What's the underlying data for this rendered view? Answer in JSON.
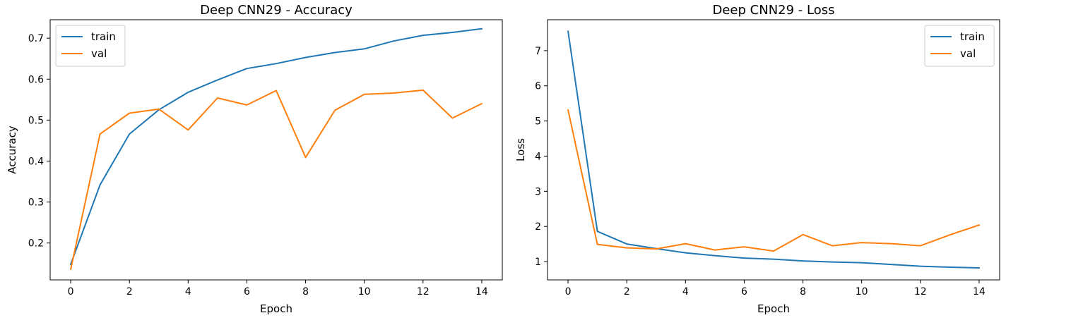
{
  "colors": {
    "train": "#1f77b4",
    "val": "#ff7f0e",
    "axes": "#000000",
    "legend_border": "#cccccc"
  },
  "chart_data": [
    {
      "type": "line",
      "title": "Deep CNN29 - Accuracy",
      "xlabel": "Epoch",
      "ylabel": "Accuracy",
      "xlim": [
        -0.7,
        14.7
      ],
      "ylim": [
        0.11,
        0.745
      ],
      "xticks": [
        0,
        2,
        4,
        6,
        8,
        10,
        12,
        14
      ],
      "yticks": [
        0.2,
        0.3,
        0.4,
        0.5,
        0.6,
        0.7
      ],
      "ytick_labels": [
        "0.2",
        "0.3",
        "0.4",
        "0.5",
        "0.6",
        "0.7"
      ],
      "legend_position": "upper left",
      "x": [
        0,
        1,
        2,
        3,
        4,
        5,
        6,
        7,
        8,
        9,
        10,
        11,
        12,
        13,
        14
      ],
      "series": [
        {
          "name": "train",
          "color": "#1f77b4",
          "values": [
            0.148,
            0.342,
            0.466,
            0.525,
            0.568,
            0.598,
            0.626,
            0.638,
            0.653,
            0.665,
            0.674,
            0.693,
            0.707,
            0.714,
            0.723
          ]
        },
        {
          "name": "val",
          "color": "#ff7f0e",
          "values": [
            0.136,
            0.466,
            0.517,
            0.527,
            0.476,
            0.554,
            0.537,
            0.572,
            0.409,
            0.524,
            0.563,
            0.566,
            0.573,
            0.505,
            0.54
          ]
        }
      ]
    },
    {
      "type": "line",
      "title": "Deep CNN29 - Loss",
      "xlabel": "Epoch",
      "ylabel": "Loss",
      "xlim": [
        -0.7,
        14.7
      ],
      "ylim": [
        0.48,
        7.88
      ],
      "xticks": [
        0,
        2,
        4,
        6,
        8,
        10,
        12,
        14
      ],
      "yticks": [
        1,
        2,
        3,
        4,
        5,
        6,
        7
      ],
      "ytick_labels": [
        "1",
        "2",
        "3",
        "4",
        "5",
        "6",
        "7"
      ],
      "legend_position": "upper right",
      "x": [
        0,
        1,
        2,
        3,
        4,
        5,
        6,
        7,
        8,
        9,
        10,
        11,
        12,
        13,
        14
      ],
      "series": [
        {
          "name": "train",
          "color": "#1f77b4",
          "values": [
            7.55,
            1.86,
            1.5,
            1.37,
            1.25,
            1.17,
            1.1,
            1.07,
            1.02,
            0.99,
            0.97,
            0.92,
            0.87,
            0.84,
            0.82
          ]
        },
        {
          "name": "val",
          "color": "#ff7f0e",
          "values": [
            5.31,
            1.49,
            1.39,
            1.36,
            1.51,
            1.33,
            1.42,
            1.3,
            1.77,
            1.45,
            1.54,
            1.51,
            1.45,
            1.76,
            2.04
          ]
        }
      ]
    }
  ]
}
